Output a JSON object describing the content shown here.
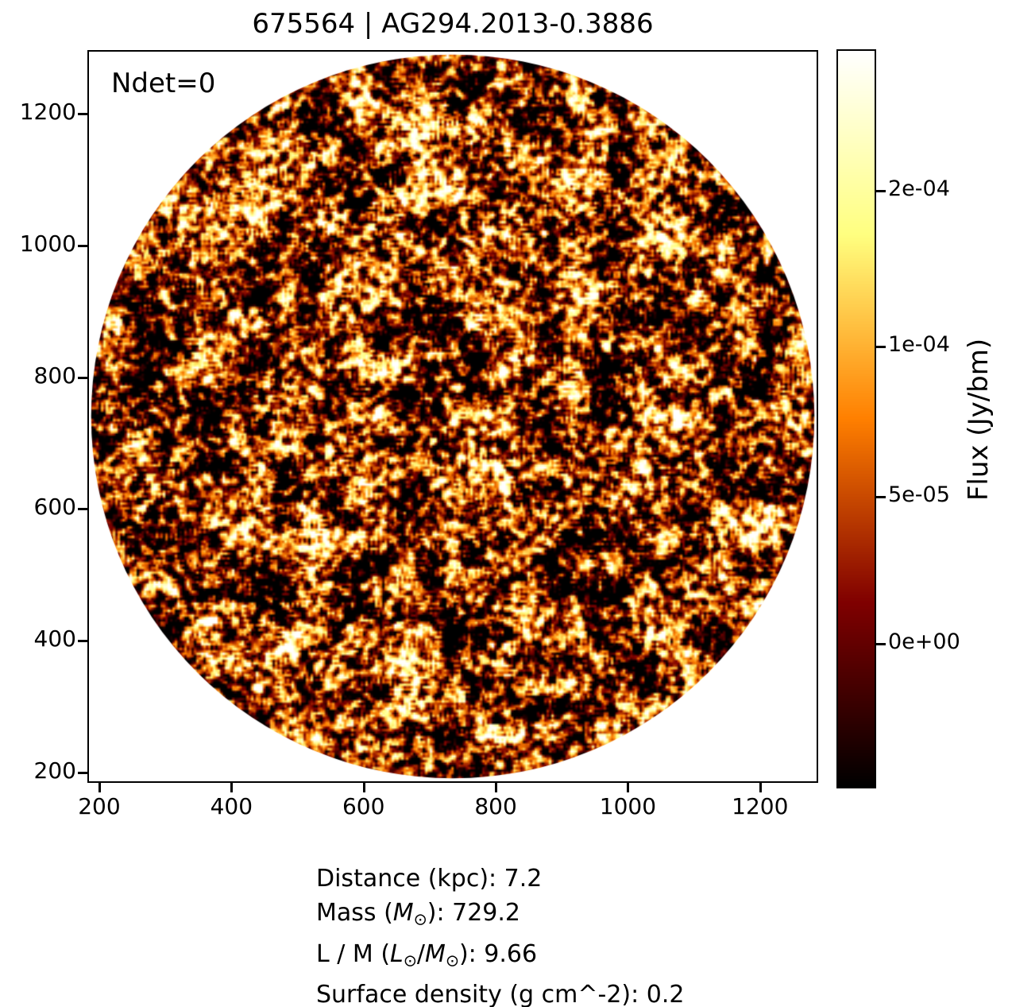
{
  "title": "675564 | AG294.2013-0.3886",
  "annotation": "Ndet=0",
  "chart_data": {
    "type": "heatmap",
    "title": "675564 | AG294.2013-0.3886",
    "annotation": "Ndet=0",
    "description": "Circular radio-continuum flux cutout filled with correlated speckle noise (no detected sources), rendered with the afmhot colormap inside a square axes box; area outside the circular field of view is white.",
    "x_ticks": [
      200,
      400,
      600,
      800,
      1000,
      1200
    ],
    "y_ticks": [
      200,
      400,
      600,
      800,
      1000,
      1200
    ],
    "x_range": [
      182,
      1288
    ],
    "y_range": [
      184,
      1297
    ],
    "grid": false,
    "colormap": "afmhot",
    "colormap_stops": {
      "0.0": "#000000",
      "0.25": "#800000",
      "0.5": "#ff8000",
      "0.75": "#ffff80",
      "1.0": "#ffffff"
    },
    "circle": {
      "center_x_frac": 0.5,
      "center_y_frac": 0.5,
      "radius_frac": 0.497
    },
    "noise": {
      "seed": 20240915,
      "fine_gain": 3.0,
      "coarse_gain": 0.85,
      "bias": 0.31
    },
    "colorbar": {
      "label": "Flux (Jy/bm)",
      "position": "right",
      "ticks": [
        {
          "label": "2e-04",
          "value": 0.0002,
          "frac_from_top": 0.191
        },
        {
          "label": "1e-04",
          "value": 0.0001,
          "frac_from_top": 0.402
        },
        {
          "label": "5e-05",
          "value": 5e-05,
          "frac_from_top": 0.605
        },
        {
          "label": "0e+00",
          "value": 0.0,
          "frac_from_top": 0.804
        }
      ]
    },
    "stats": {
      "distance_kpc": 7.2,
      "mass_msun": 729.2,
      "l_over_m_lsun_per_msun": 9.66,
      "surface_density_g_cm2": 0.2
    }
  },
  "stats_lines": [
    {
      "segments": [
        {
          "t": "Distance (kpc): 7.2"
        }
      ]
    },
    {
      "segments": [
        {
          "t": "Mass ("
        },
        {
          "t": "M",
          "style": "it"
        },
        {
          "t": "⊙",
          "style": "sub"
        },
        {
          "t": "): 729.2"
        }
      ]
    },
    {
      "segments": [
        {
          "t": "L / M ("
        },
        {
          "t": "L",
          "style": "it"
        },
        {
          "t": "⊙",
          "style": "sub"
        },
        {
          "t": "/"
        },
        {
          "t": "M",
          "style": "it"
        },
        {
          "t": "⊙",
          "style": "sub"
        },
        {
          "t": "): 9.66"
        }
      ]
    },
    {
      "segments": [
        {
          "t": "Surface density (g cm^-2): 0.2"
        }
      ]
    }
  ]
}
